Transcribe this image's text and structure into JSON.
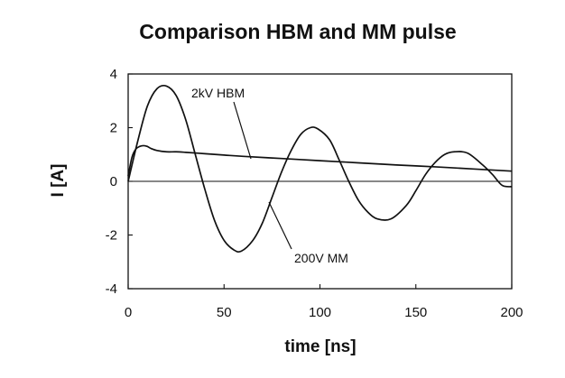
{
  "chart_data": {
    "type": "line",
    "title": "Comparison HBM and MM pulse",
    "xlabel": "time [ns]",
    "ylabel": "I  [A]",
    "xlim": [
      0,
      200
    ],
    "ylim": [
      -4,
      4
    ],
    "xticks": [
      0,
      50,
      100,
      150,
      200
    ],
    "yticks": [
      4,
      2,
      0,
      -2,
      -4
    ],
    "grid": false,
    "series": [
      {
        "name": "2kV HBM",
        "x": [
          0,
          2,
          4,
          6,
          8,
          10,
          12,
          15,
          20,
          25,
          30,
          40,
          50,
          60,
          80,
          100,
          120,
          140,
          160,
          180,
          200
        ],
        "y": [
          0.2,
          0.9,
          1.2,
          1.3,
          1.33,
          1.3,
          1.22,
          1.15,
          1.1,
          1.1,
          1.08,
          1.03,
          0.98,
          0.93,
          0.85,
          0.77,
          0.69,
          0.61,
          0.54,
          0.46,
          0.38
        ],
        "color": "#111111"
      },
      {
        "name": "200V MM",
        "x": [
          0,
          5,
          10,
          15,
          20,
          25,
          30,
          35,
          40,
          45,
          50,
          55,
          59,
          65,
          70,
          75,
          80,
          85,
          90,
          95,
          99,
          105,
          110,
          115,
          120,
          125,
          130,
          137,
          145,
          150,
          155,
          160,
          165,
          170,
          177,
          185,
          190,
          195,
          200
        ],
        "y": [
          0.0,
          1.5,
          2.8,
          3.45,
          3.55,
          3.2,
          2.3,
          1.0,
          -0.3,
          -1.45,
          -2.2,
          -2.55,
          -2.6,
          -2.2,
          -1.55,
          -0.6,
          0.35,
          1.15,
          1.75,
          2.0,
          1.95,
          1.55,
          0.8,
          0.0,
          -0.7,
          -1.15,
          -1.4,
          -1.4,
          -0.9,
          -0.35,
          0.25,
          0.7,
          1.0,
          1.1,
          1.05,
          0.6,
          0.25,
          -0.15,
          -0.2
        ],
        "color": "#111111"
      }
    ],
    "annotations": [
      {
        "text": "2kV HBM",
        "target_series": "2kV HBM"
      },
      {
        "text": "200V MM",
        "target_series": "200V MM"
      }
    ]
  }
}
